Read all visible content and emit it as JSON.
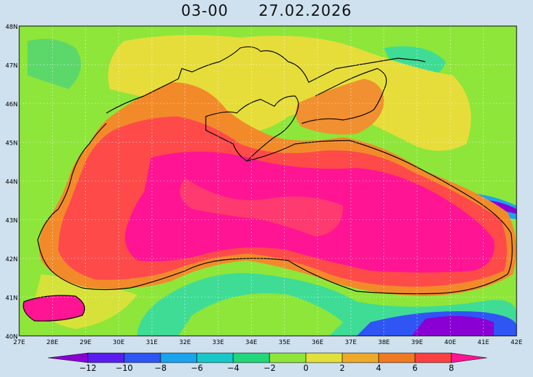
{
  "header": {
    "time": "03-00",
    "date": "27.02.2026"
  },
  "map": {
    "lon_labels": [
      "27E",
      "28E",
      "29E",
      "30E",
      "31E",
      "32E",
      "33E",
      "34E",
      "35E",
      "36E",
      "37E",
      "38E",
      "39E",
      "40E",
      "41E",
      "42E"
    ],
    "lat_labels": [
      "48N",
      "47N",
      "46N",
      "45N",
      "44N",
      "43N",
      "42N",
      "41N",
      "40N"
    ],
    "grid": true
  },
  "colorbar": {
    "labels": [
      "-12",
      "-10",
      "-8",
      "-6",
      "-4",
      "-2",
      "0",
      "2",
      "4",
      "6",
      "8"
    ],
    "colors": [
      "#8a00d4",
      "#5a1cf0",
      "#2f55f5",
      "#1aa4ee",
      "#18c8c8",
      "#22d67a",
      "#8ee63a",
      "#e2e03a",
      "#eeaa2a",
      "#f07a20",
      "#fa4040",
      "#ff1493"
    ]
  },
  "palette": {
    "sea_deep": "#ff1493",
    "sea_warm": "#ff3a70",
    "shelf": "#ff5050",
    "coast_orange": "#f28a2a",
    "land_yellow": "#e8e23a",
    "land_green": "#90e040",
    "mint": "#3fdc96"
  }
}
